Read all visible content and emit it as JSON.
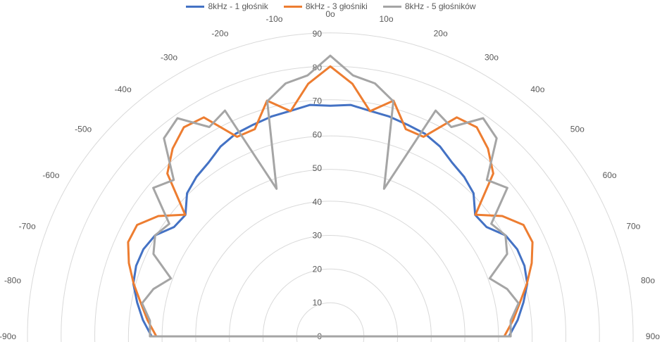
{
  "chart_data": {
    "type": "radar",
    "title": "",
    "angle_unit_suffix": "o",
    "angles": [
      -90,
      -85,
      -80,
      -75,
      -70,
      -65,
      -60,
      -55,
      -50,
      -45,
      -40,
      -35,
      -30,
      -25,
      -20,
      -15,
      -10,
      -5,
      0,
      5,
      10,
      15,
      20,
      25,
      30,
      35,
      40,
      45,
      50,
      55,
      60,
      65,
      70,
      75,
      80,
      85,
      90
    ],
    "angle_labels": [
      "-90o",
      "-80o",
      "-70o",
      "-60o",
      "-50o",
      "-40o",
      "-30o",
      "-20o",
      "-10o",
      "0o",
      "10o",
      "20o",
      "30o",
      "40o",
      "50o",
      "60o",
      "70o",
      "80o",
      "90o"
    ],
    "label_angles": [
      -90,
      -80,
      -70,
      -60,
      -50,
      -40,
      -30,
      -20,
      -10,
      0,
      10,
      20,
      30,
      40,
      50,
      60,
      70,
      80,
      90
    ],
    "rlim": [
      0,
      90
    ],
    "r_ticks": [
      "0",
      "10",
      "20",
      "30",
      "40",
      "50",
      "60",
      "70",
      "80",
      "90"
    ],
    "r_tick_values": [
      0,
      10,
      20,
      30,
      40,
      50,
      60,
      70,
      80,
      90
    ],
    "legend_position": "top",
    "series": [
      {
        "name": "8kHz - 1 głośnik",
        "color": "#4472C4",
        "values": [
          53.1,
          55.9,
          58.3,
          60.6,
          61.4,
          61.3,
          60.1,
          56.7,
          56.2,
          60.2,
          61.9,
          63.1,
          65.2,
          66.5,
          67.0,
          67.7,
          68.1,
          69.1,
          68.6,
          69.1,
          68.1,
          67.7,
          67.0,
          66.5,
          65.2,
          63.1,
          61.9,
          60.2,
          56.2,
          56.7,
          60.1,
          61.3,
          61.4,
          60.6,
          58.3,
          55.9,
          53.1
        ]
      },
      {
        "name": "8kHz - 3 głośniki",
        "color": "#ED7D31",
        "values": [
          51.7,
          54.5,
          57.2,
          60.5,
          63.7,
          66.3,
          66.3,
          62.4,
          56.3,
          68.5,
          72.9,
          75.9,
          75.2,
          65.5,
          65.6,
          72.6,
          68.0,
          75.4,
          80.3,
          75.4,
          68.0,
          72.6,
          65.6,
          65.5,
          75.2,
          75.9,
          72.9,
          68.5,
          56.3,
          62.4,
          66.3,
          66.3,
          63.7,
          60.5,
          57.2,
          54.5,
          51.7
        ]
      },
      {
        "name": "8kHz - 5 głośników",
        "color": "#A5A5A5",
        "values": [
          53.6,
          53.8,
          56.8,
          54.4,
          50.4,
          58.0,
          60.1,
          58.4,
          68.7,
          65.8,
          76.9,
          79.2,
          71.9,
          74.1,
          46.7,
          72.4,
          76.4,
          77.9,
          83.5,
          77.9,
          76.4,
          72.4,
          46.7,
          74.1,
          71.9,
          79.2,
          76.9,
          65.8,
          68.7,
          58.4,
          60.1,
          58.0,
          50.4,
          54.4,
          56.8,
          53.8,
          53.6
        ]
      }
    ]
  }
}
